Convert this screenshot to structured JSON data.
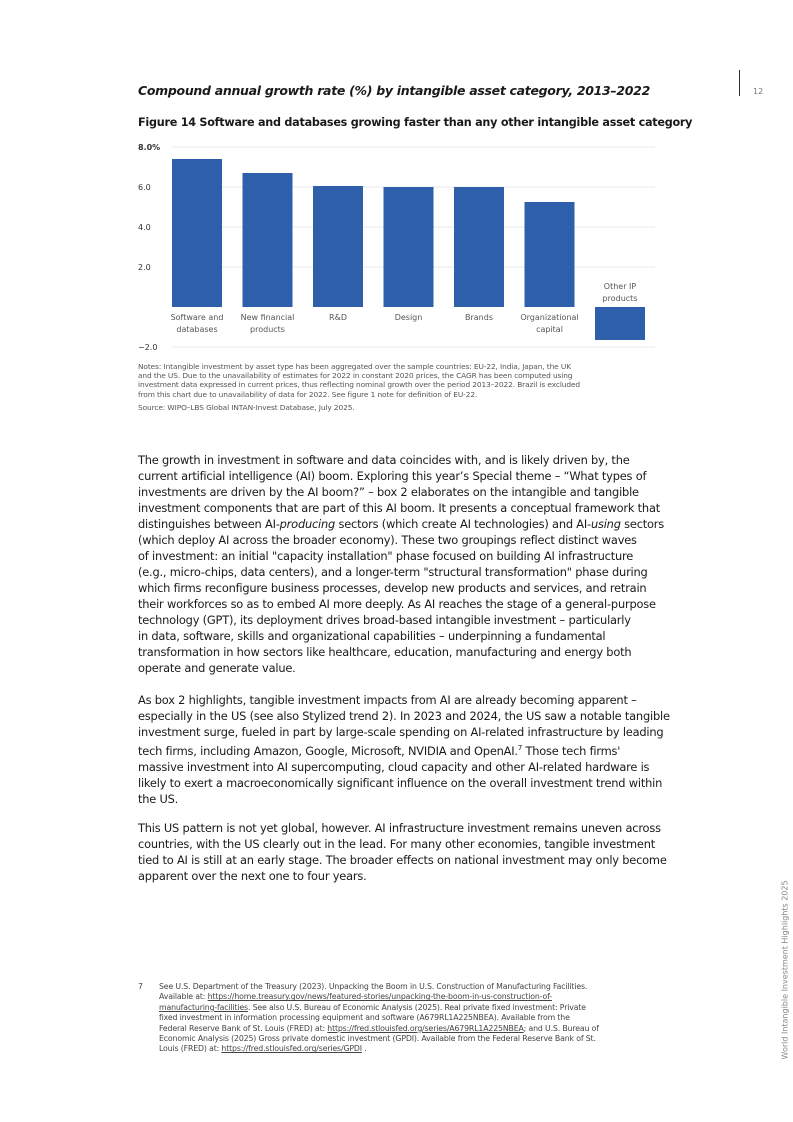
{
  "header": {
    "page_number": "12"
  },
  "subtitle": "Compound annual growth rate (%) by intangible asset category, 2013–2022",
  "figure_title": "Figure 14 Software and databases growing faster than any other intangible asset category",
  "chart_data": {
    "type": "bar",
    "title": "Figure 14 Software and databases growing faster than any other intangible asset category",
    "ylabel": "",
    "xlabel": "",
    "ylim": [
      -2,
      8
    ],
    "yticks": [
      "8.0%",
      "6.0",
      "4.0",
      "2.0",
      "−2.0"
    ],
    "ytick_values": [
      8,
      6,
      4,
      2,
      -2
    ],
    "grid": true,
    "color": "#2e5fab",
    "categories": [
      [
        "Software and",
        "databases"
      ],
      [
        "New financial",
        "products"
      ],
      [
        "R&D"
      ],
      [
        "Design"
      ],
      [
        "Brands"
      ],
      [
        "Organizational",
        "capital"
      ],
      [
        "Other IP",
        "products"
      ]
    ],
    "values": [
      7.4,
      6.7,
      6.05,
      6.0,
      6.0,
      5.25,
      -1.65
    ]
  },
  "notes": [
    "Notes: Intangible investment by asset type has been aggregated over the sample countries: EU-22, India, Japan, the UK",
    "and the US. Due to the unavailability of estimates for 2022 in constant 2020 prices, the CAGR has been computed using",
    "investment data expressed in current prices, thus reflecting nominal growth over the period 2013–2022. Brazil is excluded",
    "from this chart due to unavailability of data for 2022. See  figure 1 note for definition of EU-22."
  ],
  "source": "Source: WIPO–LBS Global INTAN-Invest Database, July 2025.",
  "paragraphs": [
    [
      [
        {
          "t": "The growth in investment in software and data coincides with, and is likely driven by, the"
        }
      ],
      [
        {
          "t": "current artificial intelligence (AI) boom. Exploring this year’s Special theme – “What types of"
        }
      ],
      [
        {
          "t": "investments are driven by the AI boom?” – box 2 elaborates on the intangible and tangible"
        }
      ],
      [
        {
          "t": "investment components that are part of this AI boom. It presents a conceptual framework that"
        }
      ],
      [
        {
          "t": "distinguishes between AI-"
        },
        {
          "t": "producing",
          "i": true
        },
        {
          "t": " sectors (which create AI technologies) and AI-"
        },
        {
          "t": "using",
          "i": true
        },
        {
          "t": " sectors"
        }
      ],
      [
        {
          "t": "(which deploy AI across the broader economy). These two groupings reflect distinct waves"
        }
      ],
      [
        {
          "t": "of investment: an initial \"capacity installation\" phase focused on building AI infrastructure"
        }
      ],
      [
        {
          "t": "(e.g., micro-chips, data centers), and a longer-term \"structural transformation\" phase during"
        }
      ],
      [
        {
          "t": "which firms reconfigure business processes, develop new products and services, and retrain"
        }
      ],
      [
        {
          "t": "their workforces so as to embed AI more deeply. As AI reaches the stage of a general-purpose"
        }
      ],
      [
        {
          "t": "technology (GPT), its deployment drives broad-based intangible investment – particularly"
        }
      ],
      [
        {
          "t": "in data, software, skills and organizational capabilities – underpinning a fundamental"
        }
      ],
      [
        {
          "t": "transformation in how sectors like healthcare, education, manufacturing and energy both"
        }
      ],
      [
        {
          "t": "operate and generate value."
        }
      ]
    ],
    [
      [
        {
          "t": "As box 2 highlights, tangible investment impacts from AI are already becoming apparent –"
        }
      ],
      [
        {
          "t": "especially in the US (see also Stylized trend 2). In 2023 and 2024, the US saw a notable tangible"
        }
      ],
      [
        {
          "t": "investment surge, fueled in part by large-scale spending on AI-related infrastructure by leading"
        }
      ],
      [
        {
          "t": "tech firms, including Amazon, Google, Microsoft, NVIDIA and OpenAI."
        },
        {
          "t": "7",
          "sup": true
        },
        {
          "t": "   Those tech firms'"
        }
      ],
      [
        {
          "t": "massive investment into AI supercomputing, cloud capacity and other AI-related hardware is"
        }
      ],
      [
        {
          "t": "likely to exert a macroeconomically significant influence on the overall investment trend within"
        }
      ],
      [
        {
          "t": "the US."
        }
      ]
    ],
    [
      [
        {
          "t": "This US pattern is not yet global, however. AI infrastructure investment remains uneven across"
        }
      ],
      [
        {
          "t": "countries, with the US clearly out in the lead. For many other economies, tangible investment"
        }
      ],
      [
        {
          "t": "tied to AI is still at an early stage. The broader effects on national investment may only become"
        }
      ],
      [
        {
          "t": "apparent over the next one to four years."
        }
      ]
    ]
  ],
  "footnote": {
    "number": "7",
    "lines": [
      [
        {
          "t": "See U.S. Department of the Treasury (2023). Unpacking the Boom in U.S. Construction of Manufacturing Facilities."
        }
      ],
      [
        {
          "t": "Available at:  "
        },
        {
          "t": "https://home.treasury.gov/news/featured-stories/unpacking-the-boom-in-us-construction-of-",
          "link": true
        }
      ],
      [
        {
          "t": "manufacturing-facilities",
          "link": true
        },
        {
          "t": ". See also U.S. Bureau of Economic Analysis (2025). Real private fixed investment: Private"
        }
      ],
      [
        {
          "t": "fixed investment in information processing equipment and software (A679RL1A225NBEA). Available from the"
        }
      ],
      [
        {
          "t": "Federal Reserve Bank of St. Louis (FRED) at: "
        },
        {
          "t": "https://fred.stlouisfed.org/series/A679RL1A225NBEA",
          "link": true
        },
        {
          "t": "; and U.S. Bureau of"
        }
      ],
      [
        {
          "t": "Economic Analysis (2025) Gross private domestic investment (GPDI). Available from the Federal Reserve Bank of St."
        }
      ],
      [
        {
          "t": "Louis (FRED) at: "
        },
        {
          "t": "https://fred.stlouisfed.org/series/GPDI",
          "link": true
        },
        {
          "t": " ."
        }
      ]
    ]
  },
  "side_text": "World Intangible Investment Highlights 2025"
}
